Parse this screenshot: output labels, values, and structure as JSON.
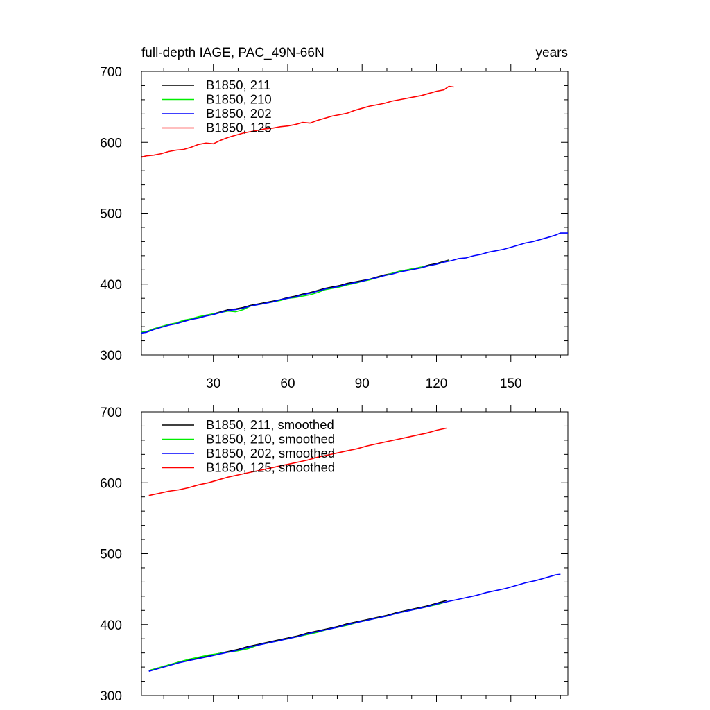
{
  "header": {
    "title": "full-depth IAGE, PAC_49N-66N",
    "units": "years"
  },
  "chart_data": [
    {
      "type": "line",
      "xlim": [
        1,
        173
      ],
      "ylim": [
        300,
        700
      ],
      "xticks": [
        30,
        60,
        90,
        120,
        150
      ],
      "xtick_labels": [
        "30",
        "60",
        "90",
        "120",
        "150"
      ],
      "yticks": [
        300,
        400,
        500,
        600,
        700
      ],
      "ytick_labels": [
        "300",
        "400",
        "500",
        "600",
        "700"
      ],
      "grid": false,
      "legend_position": "top-left",
      "series": [
        {
          "name": "B1850, 211",
          "color": "#000000",
          "x": [
            1,
            3,
            6,
            9,
            12,
            15,
            18,
            21,
            24,
            27,
            30,
            33,
            36,
            39,
            42,
            45,
            48,
            51,
            54,
            57,
            60,
            63,
            66,
            69,
            72,
            75,
            78,
            81,
            84,
            87,
            90,
            93,
            96,
            99,
            102,
            105,
            108,
            111,
            114,
            117,
            120,
            123,
            125
          ],
          "y": [
            332,
            333,
            337,
            340,
            343,
            345,
            348,
            350,
            353,
            356,
            358,
            361,
            364,
            365,
            367,
            370,
            372,
            374,
            376,
            378,
            381,
            383,
            386,
            388,
            391,
            394,
            396,
            398,
            401,
            403,
            405,
            407,
            410,
            413,
            415,
            418,
            420,
            422,
            424,
            427,
            429,
            432,
            434
          ]
        },
        {
          "name": "B1850, 210",
          "color": "#00ee00",
          "x": [
            1,
            3,
            6,
            9,
            12,
            15,
            18,
            21,
            24,
            27,
            30,
            33,
            36,
            39,
            42,
            45,
            48,
            51,
            54,
            57,
            60,
            63,
            66,
            69,
            72,
            75,
            78,
            81,
            84,
            87,
            90,
            93,
            96,
            99,
            102,
            105,
            108,
            111,
            114,
            117,
            120,
            123,
            125
          ],
          "y": [
            332,
            333,
            337,
            340,
            343,
            345,
            349,
            351,
            354,
            356,
            358,
            360,
            362,
            361,
            364,
            369,
            371,
            373,
            375,
            377,
            380,
            381,
            383,
            385,
            388,
            392,
            394,
            396,
            399,
            401,
            404,
            406,
            409,
            412,
            415,
            418,
            420,
            422,
            424,
            426,
            428,
            431,
            433
          ]
        },
        {
          "name": "B1850, 202",
          "color": "#0000ff",
          "x": [
            1,
            3,
            6,
            9,
            12,
            15,
            18,
            21,
            24,
            27,
            30,
            33,
            36,
            39,
            42,
            45,
            48,
            51,
            54,
            57,
            60,
            63,
            66,
            69,
            72,
            75,
            78,
            81,
            84,
            87,
            90,
            93,
            96,
            99,
            102,
            105,
            108,
            111,
            114,
            117,
            120,
            123,
            126,
            129,
            132,
            135,
            138,
            141,
            144,
            147,
            150,
            153,
            156,
            159,
            162,
            165,
            168,
            170,
            173
          ],
          "y": [
            331,
            332,
            336,
            339,
            342,
            344,
            347,
            350,
            352,
            355,
            357,
            360,
            363,
            364,
            366,
            369,
            371,
            373,
            375,
            378,
            380,
            382,
            385,
            387,
            390,
            393,
            395,
            397,
            400,
            402,
            404,
            407,
            409,
            412,
            414,
            417,
            419,
            421,
            423,
            426,
            428,
            431,
            433,
            436,
            437,
            440,
            442,
            445,
            447,
            449,
            452,
            455,
            458,
            460,
            463,
            466,
            469,
            472,
            472
          ]
        },
        {
          "name": "B1850, 125",
          "color": "#ff0000",
          "x": [
            1,
            3,
            6,
            9,
            12,
            15,
            18,
            21,
            24,
            27,
            30,
            33,
            36,
            39,
            42,
            45,
            48,
            51,
            54,
            57,
            60,
            63,
            66,
            69,
            72,
            75,
            78,
            81,
            84,
            87,
            90,
            93,
            96,
            99,
            102,
            105,
            108,
            111,
            114,
            117,
            120,
            123,
            125,
            127
          ],
          "y": [
            579,
            581,
            582,
            584,
            587,
            589,
            590,
            593,
            597,
            599,
            598,
            603,
            607,
            610,
            613,
            615,
            617,
            619,
            620,
            622,
            623,
            625,
            628,
            627,
            631,
            634,
            637,
            639,
            641,
            645,
            648,
            651,
            653,
            655,
            658,
            660,
            662,
            664,
            666,
            669,
            672,
            674,
            679,
            678
          ]
        }
      ]
    },
    {
      "type": "line",
      "xlim": [
        1,
        173
      ],
      "ylim": [
        300,
        700
      ],
      "xticks": [
        30,
        60,
        90,
        120,
        150
      ],
      "yticks": [
        300,
        400,
        500,
        600,
        700
      ],
      "ytick_labels": [
        "300",
        "400",
        "500",
        "600",
        "700"
      ],
      "grid": false,
      "legend_position": "top-left",
      "series": [
        {
          "name": "B1850, 211, smoothed",
          "color": "#000000",
          "x": [
            4,
            8,
            12,
            16,
            20,
            24,
            28,
            32,
            36,
            40,
            44,
            48,
            52,
            56,
            60,
            64,
            68,
            72,
            76,
            80,
            84,
            88,
            92,
            96,
            100,
            104,
            108,
            112,
            116,
            120,
            124
          ],
          "y": [
            335,
            339,
            343,
            347,
            350,
            353,
            356,
            359,
            362,
            365,
            369,
            372,
            375,
            378,
            381,
            384,
            388,
            391,
            394,
            397,
            401,
            404,
            407,
            410,
            413,
            417,
            420,
            423,
            426,
            430,
            434
          ]
        },
        {
          "name": "B1850, 210, smoothed",
          "color": "#00ee00",
          "x": [
            4,
            8,
            12,
            16,
            20,
            24,
            28,
            32,
            36,
            40,
            44,
            48,
            52,
            56,
            60,
            64,
            68,
            72,
            76,
            80,
            84,
            88,
            92,
            96,
            100,
            104,
            108,
            112,
            116,
            120,
            124
          ],
          "y": [
            335,
            339,
            343,
            347,
            351,
            354,
            357,
            359,
            361,
            363,
            366,
            371,
            374,
            377,
            380,
            383,
            386,
            389,
            393,
            396,
            399,
            403,
            406,
            409,
            412,
            416,
            419,
            422,
            425,
            428,
            432
          ]
        },
        {
          "name": "B1850, 202, smoothed",
          "color": "#0000ff",
          "x": [
            4,
            8,
            12,
            16,
            20,
            24,
            28,
            32,
            36,
            40,
            44,
            48,
            52,
            56,
            60,
            64,
            68,
            72,
            76,
            80,
            84,
            88,
            92,
            96,
            100,
            104,
            108,
            112,
            116,
            120,
            124,
            128,
            132,
            136,
            140,
            144,
            148,
            152,
            156,
            160,
            164,
            168,
            170
          ],
          "y": [
            334,
            338,
            342,
            346,
            349,
            352,
            355,
            358,
            361,
            364,
            368,
            371,
            374,
            377,
            380,
            383,
            387,
            390,
            393,
            396,
            400,
            403,
            406,
            409,
            412,
            416,
            419,
            422,
            425,
            429,
            432,
            435,
            438,
            441,
            445,
            448,
            451,
            455,
            459,
            462,
            466,
            470,
            471
          ]
        },
        {
          "name": "B1850, 125, smoothed",
          "color": "#ff0000",
          "x": [
            4,
            8,
            12,
            16,
            20,
            24,
            28,
            32,
            36,
            40,
            44,
            48,
            52,
            56,
            60,
            64,
            68,
            72,
            76,
            80,
            84,
            88,
            92,
            96,
            100,
            104,
            108,
            112,
            116,
            120,
            124
          ],
          "y": [
            582,
            585,
            588,
            590,
            593,
            597,
            600,
            604,
            608,
            611,
            614,
            617,
            620,
            623,
            626,
            629,
            632,
            636,
            639,
            642,
            645,
            648,
            652,
            655,
            658,
            661,
            664,
            667,
            670,
            674,
            677
          ]
        }
      ]
    }
  ]
}
